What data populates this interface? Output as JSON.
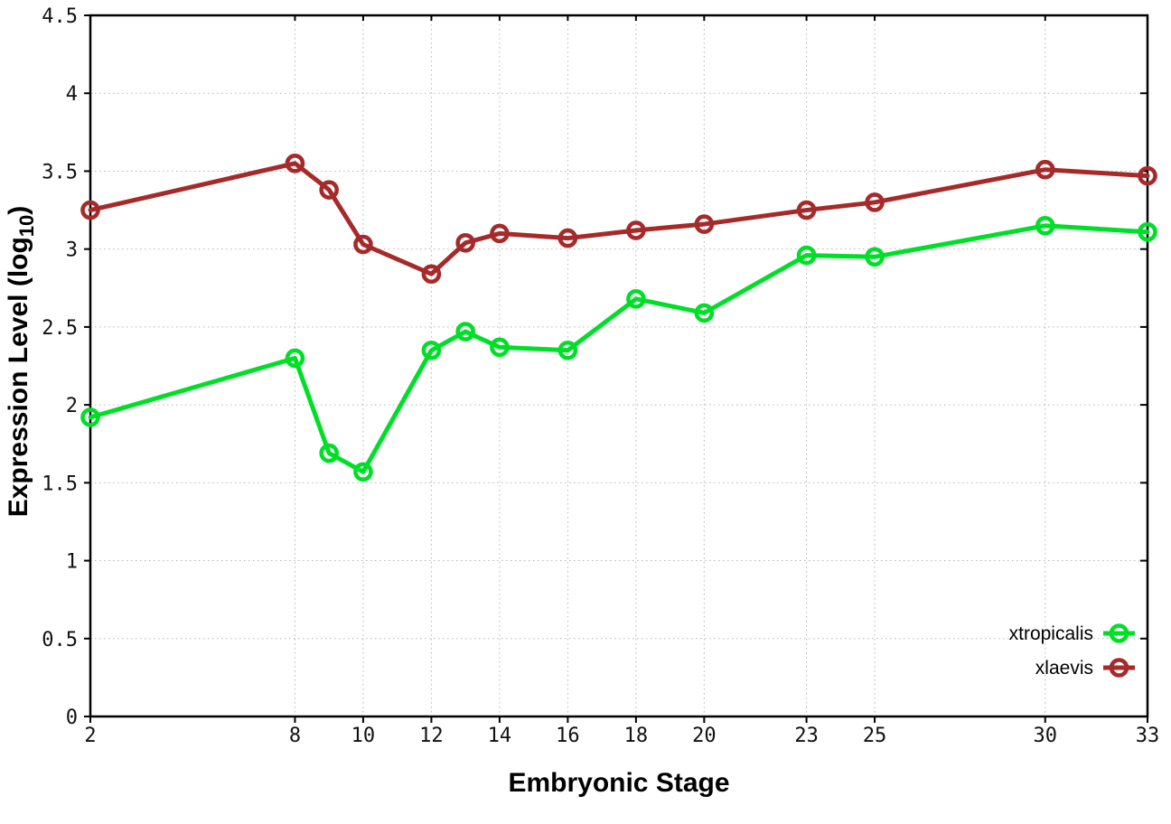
{
  "chart_data": {
    "type": "line",
    "x": [
      2,
      8,
      9,
      10,
      12,
      13,
      14,
      16,
      18,
      20,
      23,
      25,
      30,
      33
    ],
    "series": [
      {
        "name": "xtropicalis",
        "color": "#00df28",
        "marker": "open-circle",
        "values": [
          1.92,
          2.3,
          1.69,
          1.57,
          2.35,
          2.47,
          2.37,
          2.35,
          2.68,
          2.59,
          2.96,
          2.95,
          3.15,
          3.11
        ]
      },
      {
        "name": "xlaevis",
        "color": "#a62a2a",
        "marker": "open-circle",
        "values": [
          3.25,
          3.55,
          3.38,
          3.03,
          2.84,
          3.04,
          3.1,
          3.07,
          3.12,
          3.16,
          3.25,
          3.3,
          3.51,
          3.47
        ]
      }
    ],
    "title": "",
    "xlabel": "Embryonic Stage",
    "ylabel": "Expression Level (log10)",
    "ylabel_parts": {
      "pre": "Expression Level (log",
      "sub": "10",
      "post": ")"
    },
    "xlim": [
      2,
      33
    ],
    "ylim": [
      0,
      4.5
    ],
    "xticks": [
      2,
      8,
      10,
      12,
      14,
      16,
      18,
      20,
      23,
      25,
      30,
      33
    ],
    "xtick_labels": [
      "2",
      "8",
      "10",
      "12",
      "14",
      "16",
      "18",
      "20",
      "23",
      "25",
      "30",
      "33"
    ],
    "yticks": [
      0,
      0.5,
      1,
      1.5,
      2,
      2.5,
      3,
      3.5,
      4,
      4.5
    ],
    "ytick_labels": [
      "0",
      "0.5",
      "1",
      "1.5",
      "2",
      "2.5",
      "3",
      "3.5",
      "4",
      "4.5"
    ],
    "grid": true,
    "grid_style": "dotted",
    "legend_position": "bottom-right-inside",
    "legend_entries": [
      "xtropicalis",
      "xlaevis"
    ]
  },
  "colors": {
    "background": "#ffffff",
    "axis": "#000000",
    "grid": "#b5b5b5",
    "tick_text": "#111111",
    "xtropicalis": "#00df28",
    "xlaevis": "#a62a2a"
  }
}
